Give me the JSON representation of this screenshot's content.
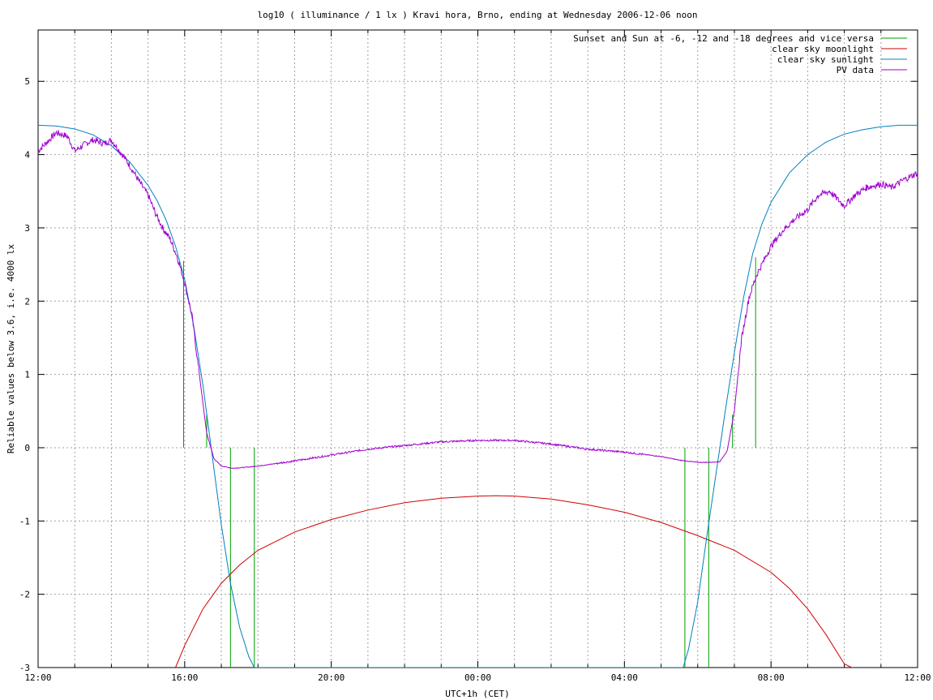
{
  "chart_data": {
    "type": "line",
    "title": "log10 ( illuminance / 1 lx ) Kravi hora, Brno, ending at Wednesday 2006-12-06 noon",
    "xlabel": "UTC+1h (CET)",
    "ylabel": "Reliable values below 3.6, i.e. 4000 lx",
    "xlim": [
      0,
      24
    ],
    "ylim": [
      -3,
      5.7
    ],
    "grid": true,
    "legend_position": "top-right",
    "x_ticks": [
      {
        "value": 0,
        "label": "12:00"
      },
      {
        "value": 4,
        "label": "16:00"
      },
      {
        "value": 8,
        "label": "20:00"
      },
      {
        "value": 12,
        "label": "00:00"
      },
      {
        "value": 16,
        "label": "04:00"
      },
      {
        "value": 20,
        "label": "08:00"
      },
      {
        "value": 24,
        "label": "12:00"
      }
    ],
    "y_ticks": [
      {
        "value": -3,
        "label": "-3"
      },
      {
        "value": -2,
        "label": "-2"
      },
      {
        "value": -1,
        "label": "-1"
      },
      {
        "value": 0,
        "label": "0"
      },
      {
        "value": 1,
        "label": "1"
      },
      {
        "value": 2,
        "label": "2"
      },
      {
        "value": 3,
        "label": "3"
      },
      {
        "value": 4,
        "label": "4"
      },
      {
        "value": 5,
        "label": "5"
      }
    ],
    "series": [
      {
        "name": "Sunset and Sun at -6, -12 and -18 degrees and vice versa",
        "color": "#00a000",
        "markers": [
          {
            "x": 3.97,
            "y": 2.55
          },
          {
            "x": 4.6,
            "y": 0.45
          },
          {
            "x": 5.25,
            "y": 0
          },
          {
            "x": 5.9,
            "y": 0
          },
          {
            "x": 17.65,
            "y": 0
          },
          {
            "x": 18.3,
            "y": 0
          },
          {
            "x": 18.95,
            "y": 0.45
          },
          {
            "x": 19.58,
            "y": 2.6
          }
        ]
      },
      {
        "name": "clear sky moonlight",
        "color": "#d00000",
        "x": [
          3.75,
          4.0,
          4.5,
          5.0,
          5.5,
          6.0,
          7.0,
          8.0,
          9.0,
          10.0,
          11.0,
          12.0,
          12.5,
          13.0,
          14.0,
          15.0,
          16.0,
          17.0,
          18.0,
          19.0,
          20.0,
          20.5,
          21.0,
          21.5,
          22.0,
          22.2
        ],
        "y": [
          -3.0,
          -2.7,
          -2.2,
          -1.85,
          -1.6,
          -1.4,
          -1.15,
          -0.98,
          -0.85,
          -0.75,
          -0.69,
          -0.66,
          -0.655,
          -0.66,
          -0.7,
          -0.78,
          -0.88,
          -1.02,
          -1.2,
          -1.4,
          -1.7,
          -1.92,
          -2.2,
          -2.55,
          -2.95,
          -3.0
        ]
      },
      {
        "name": "clear sky sunlight",
        "color": "#0080c0",
        "x": [
          0.0,
          0.5,
          1.0,
          1.5,
          2.0,
          2.5,
          3.0,
          3.25,
          3.5,
          3.75,
          4.0,
          4.25,
          4.5,
          4.75,
          5.0,
          5.25,
          5.5,
          5.75,
          5.9,
          17.6,
          17.75,
          18.0,
          18.25,
          18.5,
          18.75,
          19.0,
          19.25,
          19.5,
          19.75,
          20.0,
          20.5,
          21.0,
          21.5,
          22.0,
          22.5,
          23.0,
          23.5,
          24.0
        ],
        "y": [
          4.4,
          4.39,
          4.35,
          4.27,
          4.12,
          3.9,
          3.58,
          3.37,
          3.1,
          2.75,
          2.3,
          1.65,
          0.85,
          -0.1,
          -1.05,
          -1.85,
          -2.45,
          -2.85,
          -3.0,
          -3.0,
          -2.75,
          -2.1,
          -1.2,
          -0.35,
          0.5,
          1.3,
          2.05,
          2.65,
          3.05,
          3.35,
          3.75,
          4.0,
          4.17,
          4.28,
          4.34,
          4.38,
          4.4,
          4.4
        ]
      },
      {
        "name": "PV data",
        "color": "#a000d0",
        "x": [
          0.0,
          0.3,
          0.5,
          0.8,
          1.0,
          1.3,
          1.5,
          1.8,
          2.0,
          2.3,
          2.5,
          2.8,
          3.0,
          3.2,
          3.4,
          3.6,
          3.8,
          4.0,
          4.2,
          4.4,
          4.6,
          4.8,
          5.0,
          5.3,
          5.6,
          6.0,
          7.0,
          8.0,
          9.0,
          10.0,
          11.0,
          12.0,
          13.0,
          14.0,
          15.0,
          16.0,
          17.0,
          17.5,
          18.0,
          18.3,
          18.6,
          18.8,
          19.0,
          19.2,
          19.4,
          19.6,
          19.8,
          20.0,
          20.3,
          20.6,
          21.0,
          21.3,
          21.6,
          22.0,
          22.3,
          22.6,
          23.0,
          23.3,
          23.6,
          24.0
        ],
        "y": [
          4.05,
          4.2,
          4.3,
          4.25,
          4.05,
          4.15,
          4.2,
          4.15,
          4.2,
          4.0,
          3.85,
          3.6,
          3.45,
          3.2,
          3.0,
          2.85,
          2.6,
          2.25,
          1.8,
          1.0,
          0.2,
          -0.15,
          -0.25,
          -0.28,
          -0.27,
          -0.25,
          -0.18,
          -0.1,
          -0.02,
          0.03,
          0.08,
          0.1,
          0.1,
          0.05,
          -0.02,
          -0.06,
          -0.12,
          -0.17,
          -0.2,
          -0.2,
          -0.19,
          -0.05,
          0.5,
          1.5,
          2.05,
          2.35,
          2.55,
          2.75,
          2.95,
          3.1,
          3.25,
          3.45,
          3.5,
          3.3,
          3.45,
          3.55,
          3.6,
          3.55,
          3.65,
          3.75
        ]
      }
    ]
  }
}
